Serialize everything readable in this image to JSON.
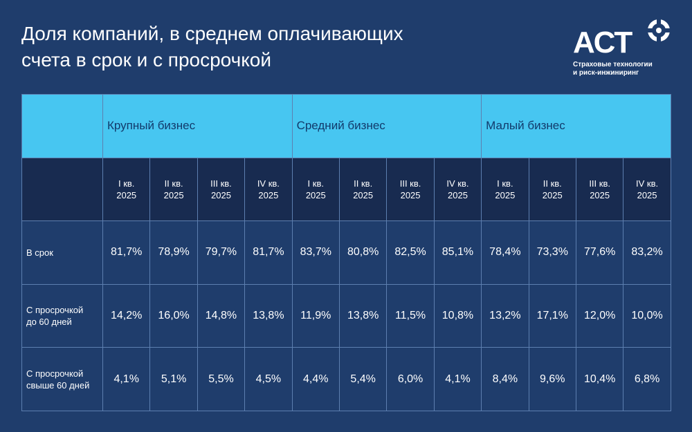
{
  "title_lines": [
    "Доля компаний, в среднем оплачивающих",
    "счета в срок и с просрочкой"
  ],
  "logo": {
    "word": "АСТ",
    "subtitle_lines": [
      "Страховые технологии",
      "и риск-инжиниринг"
    ],
    "icon": "circle-plus-icon"
  },
  "colors": {
    "background": "#1f3d6c",
    "header": "#47c6f1",
    "quarter_row": "#182b50",
    "grid_line": "#5d7fb0"
  },
  "chart_data": {
    "type": "table",
    "groups": [
      "Крупный бизнес",
      "Средний бизнес",
      "Малый бизнес"
    ],
    "quarters": [
      [
        "I кв.",
        "2025"
      ],
      [
        "II кв.",
        "2025"
      ],
      [
        "III кв.",
        "2025"
      ],
      [
        "IV кв.",
        "2025"
      ],
      [
        "I кв.",
        "2025"
      ],
      [
        "II кв.",
        "2025"
      ],
      [
        "III кв.",
        "2025"
      ],
      [
        "IV кв.",
        "2025"
      ],
      [
        "I кв.",
        "2025"
      ],
      [
        "II кв.",
        "2025"
      ],
      [
        "III кв.",
        "2025"
      ],
      [
        "IV кв.",
        "2025"
      ]
    ],
    "rows": [
      {
        "label_lines": [
          "В срок"
        ],
        "values": [
          "81,7%",
          "78,9%",
          "79,7%",
          "81,7%",
          "83,7%",
          "80,8%",
          "82,5%",
          "85,1%",
          "78,4%",
          "73,3%",
          "77,6%",
          "83,2%"
        ]
      },
      {
        "label_lines": [
          "С просрочкой",
          "до 60 дней"
        ],
        "values": [
          "14,2%",
          "16,0%",
          "14,8%",
          "13,8%",
          "11,9%",
          "13,8%",
          "11,5%",
          "10,8%",
          "13,2%",
          "17,1%",
          "12,0%",
          "10,0%"
        ]
      },
      {
        "label_lines": [
          "С просрочкой",
          "свыше 60 дней"
        ],
        "values": [
          "4,1%",
          "5,1%",
          "5,5%",
          "4,5%",
          "4,4%",
          "5,4%",
          "6,0%",
          "4,1%",
          "8,4%",
          "9,6%",
          "10,4%",
          "6,8%"
        ]
      }
    ]
  }
}
